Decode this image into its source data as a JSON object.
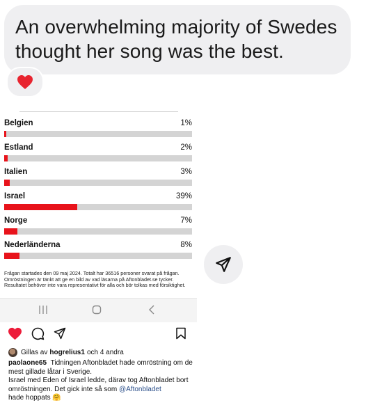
{
  "message": {
    "text": "An overwhelming majority of Swedes thought her song was the best.",
    "reaction": "❤️"
  },
  "poll": {
    "items": [
      {
        "country": "Belgien",
        "percent_label": "1%",
        "percent": 1
      },
      {
        "country": "Estland",
        "percent_label": "2%",
        "percent": 2
      },
      {
        "country": "Italien",
        "percent_label": "3%",
        "percent": 3
      },
      {
        "country": "Israel",
        "percent_label": "39%",
        "percent": 39
      },
      {
        "country": "Norge",
        "percent_label": "7%",
        "percent": 7
      },
      {
        "country": "Nederländerna",
        "percent_label": "8%",
        "percent": 8
      }
    ],
    "footnote": "Frågan startades den 09 maj 2024. Totalt har 36516 personer svarat på frågan. Omröstningen är tänkt att ge en bild av vad läsarna på Aftonbladet.se tycker. Resultatet behöver inte vara representativt för alla och bör tolkas med försiktighet.",
    "bar_color": "#e8131b"
  },
  "navbar": {
    "recents": "|||",
    "home": "○",
    "back": "<"
  },
  "instagram": {
    "liked_prefix": "Gillas av",
    "liked_user": "hogrelius1",
    "liked_suffix": "och 4 andra",
    "caption_user": "paolaone65",
    "caption_line1": "Tidningen Aftonbladet hade omröstning om de mest gillade låtar i Sverige.",
    "caption_line2": "Israel med Eden of Israel ledde, därav tog Aftonbladet bort omröstningen. Det gick inte så som",
    "caption_mention": "@Aftonbladet",
    "caption_line3": "hade hoppats 🤗"
  }
}
